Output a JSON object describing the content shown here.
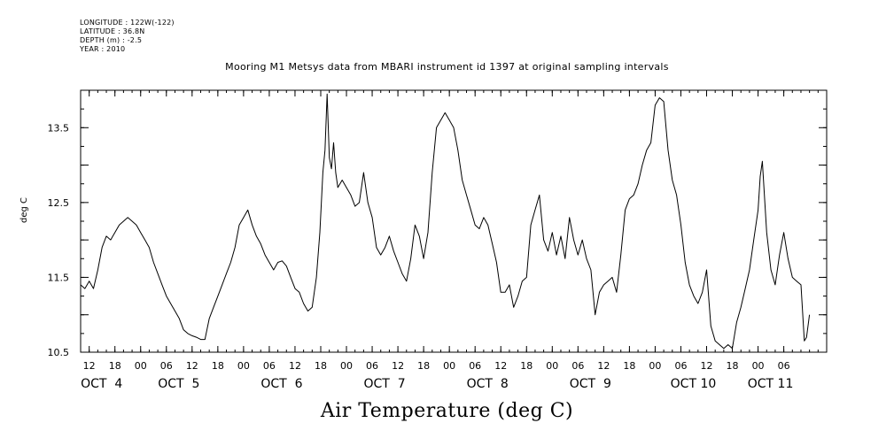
{
  "meta": {
    "longitude": "LONGITUDE : 122W(-122)",
    "latitude": "LATITUDE : 36.8N",
    "depth": "DEPTH (m) : -2.5",
    "year": "YEAR : 2010"
  },
  "chart_data": {
    "type": "line",
    "title": "Mooring M1 Metsys data from MBARI instrument id 1397 at original sampling intervals",
    "xlabel": "Air Temperature (deg C)",
    "ylabel": "deg C",
    "ylim": [
      10.5,
      14.0
    ],
    "xlim": [
      10,
      184
    ],
    "y_ticks": [
      10.5,
      11.5,
      12.5,
      13.5
    ],
    "y_tick_labels": [
      "10.5",
      "11.5",
      "12.5",
      "13.5"
    ],
    "x_hour_ticks": [
      {
        "x": 12,
        "label": "12"
      },
      {
        "x": 18,
        "label": "18"
      },
      {
        "x": 24,
        "label": "00"
      },
      {
        "x": 30,
        "label": "06"
      },
      {
        "x": 36,
        "label": "12"
      },
      {
        "x": 42,
        "label": "18"
      },
      {
        "x": 48,
        "label": "00"
      },
      {
        "x": 54,
        "label": "06"
      },
      {
        "x": 60,
        "label": "12"
      },
      {
        "x": 66,
        "label": "18"
      },
      {
        "x": 72,
        "label": "00"
      },
      {
        "x": 78,
        "label": "06"
      },
      {
        "x": 84,
        "label": "12"
      },
      {
        "x": 90,
        "label": "18"
      },
      {
        "x": 96,
        "label": "00"
      },
      {
        "x": 102,
        "label": "06"
      },
      {
        "x": 108,
        "label": "12"
      },
      {
        "x": 114,
        "label": "18"
      },
      {
        "x": 120,
        "label": "00"
      },
      {
        "x": 126,
        "label": "06"
      },
      {
        "x": 132,
        "label": "12"
      },
      {
        "x": 138,
        "label": "18"
      },
      {
        "x": 144,
        "label": "00"
      },
      {
        "x": 150,
        "label": "06"
      },
      {
        "x": 156,
        "label": "12"
      },
      {
        "x": 162,
        "label": "18"
      },
      {
        "x": 168,
        "label": "00"
      },
      {
        "x": 174,
        "label": "06"
      }
    ],
    "x_day_labels": [
      {
        "x": 12,
        "label": "OCT  4"
      },
      {
        "x": 30,
        "label": "OCT  5"
      },
      {
        "x": 54,
        "label": "OCT  6"
      },
      {
        "x": 78,
        "label": "OCT  7"
      },
      {
        "x": 102,
        "label": "OCT  8"
      },
      {
        "x": 126,
        "label": "OCT  9"
      },
      {
        "x": 150,
        "label": "OCT 10"
      },
      {
        "x": 168,
        "label": "OCT 11"
      }
    ],
    "series": [
      {
        "color": "#000000",
        "points": [
          [
            10.0,
            11.4
          ],
          [
            11.0,
            11.35
          ],
          [
            12.0,
            11.45
          ],
          [
            13.0,
            11.35
          ],
          [
            14.0,
            11.6
          ],
          [
            15.0,
            11.9
          ],
          [
            16.0,
            12.05
          ],
          [
            17.0,
            12.0
          ],
          [
            18.0,
            12.1
          ],
          [
            19.0,
            12.2
          ],
          [
            20.0,
            12.25
          ],
          [
            21.0,
            12.3
          ],
          [
            22.0,
            12.25
          ],
          [
            23.0,
            12.2
          ],
          [
            24.0,
            12.1
          ],
          [
            25.0,
            12.0
          ],
          [
            26.0,
            11.9
          ],
          [
            27.0,
            11.7
          ],
          [
            28.0,
            11.55
          ],
          [
            29.0,
            11.4
          ],
          [
            30.0,
            11.25
          ],
          [
            31.0,
            11.15
          ],
          [
            32.0,
            11.05
          ],
          [
            33.0,
            10.95
          ],
          [
            34.0,
            10.8
          ],
          [
            35.0,
            10.75
          ],
          [
            36.0,
            10.72
          ],
          [
            37.0,
            10.7
          ],
          [
            38.0,
            10.67
          ],
          [
            39.0,
            10.67
          ],
          [
            40.0,
            10.95
          ],
          [
            41.0,
            11.1
          ],
          [
            42.0,
            11.25
          ],
          [
            43.0,
            11.4
          ],
          [
            44.0,
            11.55
          ],
          [
            45.0,
            11.7
          ],
          [
            46.0,
            11.9
          ],
          [
            47.0,
            12.2
          ],
          [
            48.0,
            12.3
          ],
          [
            49.0,
            12.4
          ],
          [
            50.0,
            12.2
          ],
          [
            51.0,
            12.05
          ],
          [
            52.0,
            11.95
          ],
          [
            53.0,
            11.8
          ],
          [
            54.0,
            11.7
          ],
          [
            55.0,
            11.6
          ],
          [
            56.0,
            11.7
          ],
          [
            57.0,
            11.72
          ],
          [
            58.0,
            11.65
          ],
          [
            59.0,
            11.5
          ],
          [
            60.0,
            11.35
          ],
          [
            61.0,
            11.3
          ],
          [
            62.0,
            11.15
          ],
          [
            63.0,
            11.05
          ],
          [
            64.0,
            11.1
          ],
          [
            65.0,
            11.5
          ],
          [
            65.8,
            12.1
          ],
          [
            66.5,
            12.9
          ],
          [
            67.0,
            13.2
          ],
          [
            67.5,
            13.95
          ],
          [
            68.0,
            13.1
          ],
          [
            68.5,
            12.95
          ],
          [
            69.0,
            13.3
          ],
          [
            69.5,
            12.9
          ],
          [
            70.0,
            12.7
          ],
          [
            71.0,
            12.8
          ],
          [
            72.0,
            12.7
          ],
          [
            73.0,
            12.6
          ],
          [
            74.0,
            12.45
          ],
          [
            75.0,
            12.5
          ],
          [
            76.0,
            12.9
          ],
          [
            77.0,
            12.5
          ],
          [
            78.0,
            12.3
          ],
          [
            79.0,
            11.9
          ],
          [
            80.0,
            11.8
          ],
          [
            81.0,
            11.9
          ],
          [
            82.0,
            12.05
          ],
          [
            83.0,
            11.85
          ],
          [
            84.0,
            11.7
          ],
          [
            85.0,
            11.55
          ],
          [
            86.0,
            11.45
          ],
          [
            87.0,
            11.75
          ],
          [
            88.0,
            12.2
          ],
          [
            89.0,
            12.05
          ],
          [
            90.0,
            11.75
          ],
          [
            91.0,
            12.1
          ],
          [
            92.0,
            12.9
          ],
          [
            93.0,
            13.5
          ],
          [
            94.0,
            13.6
          ],
          [
            95.0,
            13.7
          ],
          [
            96.0,
            13.6
          ],
          [
            97.0,
            13.5
          ],
          [
            98.0,
            13.2
          ],
          [
            99.0,
            12.8
          ],
          [
            100.0,
            12.6
          ],
          [
            101.0,
            12.4
          ],
          [
            102.0,
            12.2
          ],
          [
            103.0,
            12.15
          ],
          [
            104.0,
            12.3
          ],
          [
            105.0,
            12.2
          ],
          [
            106.0,
            11.95
          ],
          [
            107.0,
            11.7
          ],
          [
            108.0,
            11.3
          ],
          [
            109.0,
            11.3
          ],
          [
            110.0,
            11.4
          ],
          [
            111.0,
            11.1
          ],
          [
            112.0,
            11.25
          ],
          [
            113.0,
            11.45
          ],
          [
            114.0,
            11.5
          ],
          [
            115.0,
            12.2
          ],
          [
            116.0,
            12.4
          ],
          [
            117.0,
            12.6
          ],
          [
            118.0,
            12.0
          ],
          [
            119.0,
            11.85
          ],
          [
            120.0,
            12.1
          ],
          [
            121.0,
            11.8
          ],
          [
            122.0,
            12.05
          ],
          [
            123.0,
            11.75
          ],
          [
            124.0,
            12.3
          ],
          [
            125.0,
            12.0
          ],
          [
            126.0,
            11.8
          ],
          [
            127.0,
            12.0
          ],
          [
            128.0,
            11.75
          ],
          [
            129.0,
            11.6
          ],
          [
            130.0,
            11.0
          ],
          [
            131.0,
            11.3
          ],
          [
            132.0,
            11.4
          ],
          [
            133.0,
            11.45
          ],
          [
            134.0,
            11.5
          ],
          [
            135.0,
            11.3
          ],
          [
            136.0,
            11.8
          ],
          [
            137.0,
            12.4
          ],
          [
            138.0,
            12.55
          ],
          [
            139.0,
            12.6
          ],
          [
            140.0,
            12.75
          ],
          [
            141.0,
            13.0
          ],
          [
            142.0,
            13.2
          ],
          [
            143.0,
            13.3
          ],
          [
            144.0,
            13.8
          ],
          [
            145.0,
            13.9
          ],
          [
            146.0,
            13.85
          ],
          [
            147.0,
            13.2
          ],
          [
            148.0,
            12.8
          ],
          [
            149.0,
            12.6
          ],
          [
            150.0,
            12.2
          ],
          [
            151.0,
            11.7
          ],
          [
            152.0,
            11.4
          ],
          [
            153.0,
            11.25
          ],
          [
            154.0,
            11.15
          ],
          [
            155.0,
            11.3
          ],
          [
            156.0,
            11.6
          ],
          [
            157.0,
            10.85
          ],
          [
            158.0,
            10.65
          ],
          [
            159.0,
            10.6
          ],
          [
            160.0,
            10.55
          ],
          [
            161.0,
            10.6
          ],
          [
            162.0,
            10.55
          ],
          [
            163.0,
            10.9
          ],
          [
            164.0,
            11.1
          ],
          [
            165.0,
            11.35
          ],
          [
            166.0,
            11.6
          ],
          [
            167.0,
            12.0
          ],
          [
            168.0,
            12.4
          ],
          [
            168.5,
            12.85
          ],
          [
            169.0,
            13.05
          ],
          [
            170.0,
            12.1
          ],
          [
            171.0,
            11.6
          ],
          [
            172.0,
            11.4
          ],
          [
            173.0,
            11.8
          ],
          [
            174.0,
            12.1
          ],
          [
            175.0,
            11.75
          ],
          [
            176.0,
            11.5
          ],
          [
            177.0,
            11.45
          ],
          [
            178.0,
            11.4
          ],
          [
            178.8,
            10.65
          ],
          [
            179.3,
            10.7
          ],
          [
            180.0,
            11.0
          ]
        ]
      }
    ]
  }
}
